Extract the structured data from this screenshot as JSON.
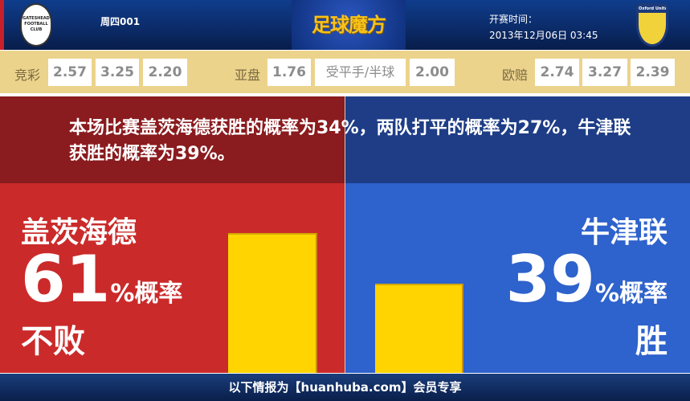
{
  "header": {
    "match_no": "周四001",
    "brand": "足球魔方",
    "kickoff_label": "开赛时间：",
    "kickoff_time": "2013年12月06日 03:45",
    "home_logo_text": "GATESHEAD FOOTBALL CLUB",
    "away_logo_text": "Oxford United"
  },
  "odds": {
    "jingcai": {
      "label": "竞彩",
      "values": [
        "2.57",
        "3.25",
        "2.20"
      ]
    },
    "asian": {
      "label": "亚盘",
      "values": [
        "1.76",
        "受平手/半球",
        "2.00"
      ]
    },
    "euro": {
      "label": "欧赔",
      "values": [
        "2.74",
        "3.27",
        "2.39"
      ]
    }
  },
  "summary": "本场比赛盖茨海德获胜的概率为34%，两队打平的概率为27%，牛津联获胜的概率为39%。",
  "home": {
    "team": "盖茨海德",
    "percent": 61,
    "percent_text": "61",
    "pct_label": "%概率",
    "outcome": "不败",
    "color": "#cb2a2a"
  },
  "away": {
    "team": "牛津联",
    "percent": 39,
    "percent_text": "39",
    "pct_label": "%概率",
    "outcome": "胜",
    "color": "#2e62cc"
  },
  "bar_color": "#ffd400",
  "footer": "以下情报为【huanhuba.com】会员专享"
}
